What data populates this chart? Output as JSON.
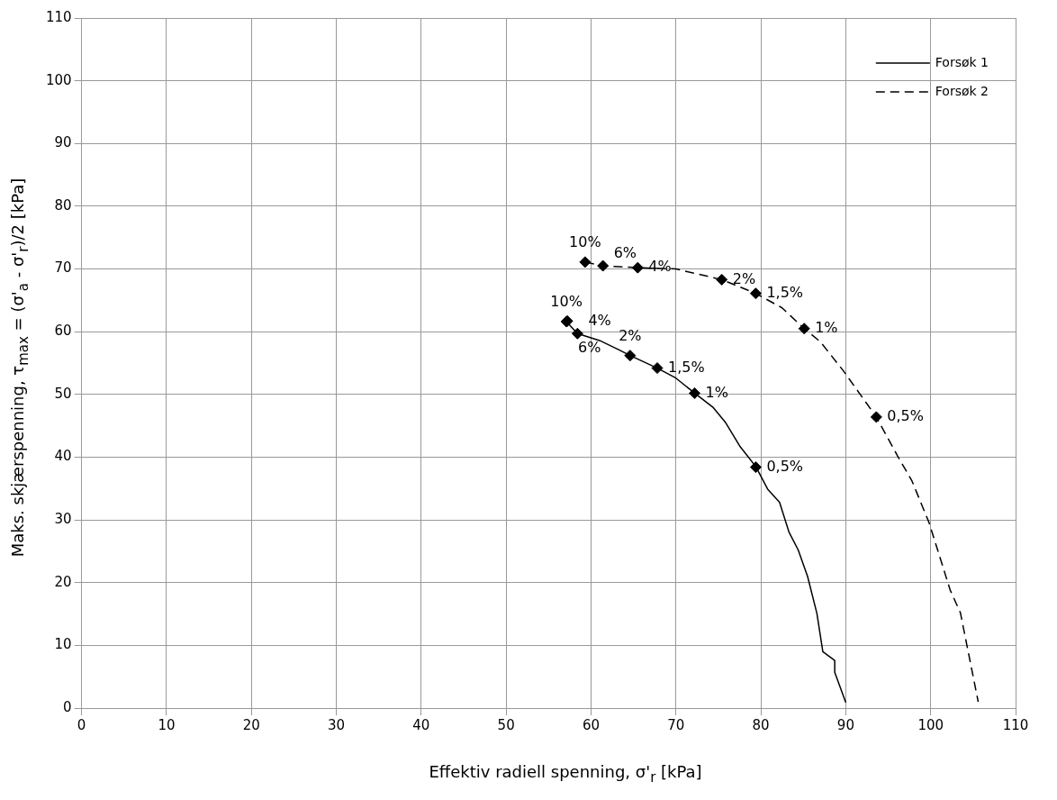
{
  "chart_data": {
    "type": "line",
    "xlabel": "Effektiv radiell spenning,  σ'$_{r}$ [kPa]",
    "ylabel": "Maks. skjærspenning, τ$_{max}$ = (σ'$_{a}$ - σ'$_{r}$)/2  [kPa]",
    "xlim": [
      0,
      110
    ],
    "xticks": [
      0,
      10,
      20,
      30,
      40,
      50,
      60,
      70,
      80,
      90,
      100,
      110
    ],
    "ylim": [
      0,
      110
    ],
    "yticks": [
      0,
      10,
      20,
      30,
      40,
      50,
      60,
      70,
      80,
      90,
      100,
      110
    ],
    "grid": true,
    "legend": "top right",
    "series": [
      {
        "name": "Forsøk 1",
        "color": "#000000",
        "line_style": "solid",
        "marker": "none",
        "x": [
          57.1,
          58.4,
          61.0,
          63.3,
          64.6,
          67.8,
          70.0,
          72.2,
          74.4,
          75.8,
          77.5,
          79.4,
          80.8,
          82.2,
          83.3,
          84.4,
          85.5,
          86.6,
          87.3,
          88.7,
          88.7,
          90.0
        ],
        "values": [
          61.6,
          59.7,
          58.6,
          57.1,
          56.2,
          54.2,
          52.6,
          50.2,
          47.9,
          45.6,
          41.8,
          38.5,
          34.9,
          32.8,
          28.1,
          25.2,
          21.0,
          15.1,
          9.0,
          7.6,
          5.7,
          0.9
        ]
      },
      {
        "name": "Forsøk 2",
        "color": "#000000",
        "line_style": "dashed",
        "marker": "none",
        "x": [
          59.3,
          61.4,
          65.5,
          70.0,
          75.4,
          79.4,
          82.5,
          85.1,
          87.0,
          89.7,
          93.6,
          96.1,
          97.8,
          99.8,
          102.3,
          103.5,
          105.6
        ],
        "values": [
          71.1,
          70.5,
          70.2,
          70.0,
          68.3,
          66.1,
          63.8,
          60.5,
          58.4,
          53.8,
          46.4,
          40.2,
          36.2,
          29.6,
          18.8,
          15.2,
          1.0
        ]
      },
      {
        "type": "scatter",
        "color": "#000000",
        "marker": "diamond",
        "x": [
          57.1,
          57.2,
          58.4,
          64.6,
          67.8,
          72.2,
          79.4
        ],
        "values": [
          61.6,
          61.7,
          59.7,
          56.2,
          54.2,
          50.2,
          38.4
        ]
      },
      {
        "type": "scatter",
        "color": "#000000",
        "marker": "diamond",
        "x": [
          59.3,
          61.4,
          65.5,
          75.4,
          79.4,
          85.1,
          93.6
        ],
        "values": [
          71.1,
          70.5,
          70.2,
          68.3,
          66.1,
          60.5,
          46.4
        ]
      }
    ],
    "annotations": [
      {
        "text": "10%",
        "x": 57.1,
        "y": 61.6
      },
      {
        "text": "6%",
        "x": 57.2,
        "y": 61.7
      },
      {
        "text": "4%",
        "x": 58.4,
        "y": 59.7
      },
      {
        "text": "2%",
        "x": 64.6,
        "y": 56.2
      },
      {
        "text": "1,5%",
        "x": 67.8,
        "y": 54.2
      },
      {
        "text": "1%",
        "x": 72.2,
        "y": 50.2
      },
      {
        "text": "0,5%",
        "x": 79.4,
        "y": 38.4
      },
      {
        "text": "10%",
        "x": 59.3,
        "y": 71.1
      },
      {
        "text": "6%",
        "x": 61.4,
        "y": 70.5
      },
      {
        "text": "4%",
        "x": 65.5,
        "y": 70.2
      },
      {
        "text": "2%",
        "x": 75.4,
        "y": 68.3
      },
      {
        "text": "1,5%",
        "x": 79.4,
        "y": 66.1
      },
      {
        "text": "1%",
        "x": 85.1,
        "y": 60.5
      },
      {
        "text": "0,5%",
        "x": 93.6,
        "y": 46.4
      }
    ]
  }
}
